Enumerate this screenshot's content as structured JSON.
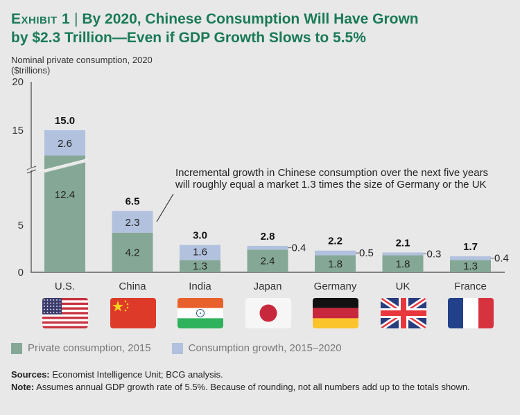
{
  "header": {
    "exhibit_label": "Exhibit 1",
    "separator": "|",
    "title_line1": "By 2020, Chinese Consumption Will Have Grown",
    "title_line2": "by $2.3 Trillion—Even if GDP Growth Slows to 5.5%"
  },
  "subtitle": {
    "line1": "Nominal private consumption, 2020",
    "line2": "($trillions)"
  },
  "colors": {
    "title": "#197a56",
    "base_series": "#85a896",
    "growth_series": "#b1c1de"
  },
  "annotation": {
    "line1": "Incremental growth in Chinese consumption over the next five years",
    "line2": "will roughly equal a market 1.3 times the size of Germany or the UK"
  },
  "chart_data": {
    "type": "bar",
    "stacked": true,
    "title": "By 2020, Chinese Consumption Will Have Grown by $2.3 Trillion—Even if GDP Growth Slows to 5.5%",
    "ylabel": "Nominal private consumption, 2020 ($trillions)",
    "xlabel": "",
    "ylim": [
      0,
      20
    ],
    "yticks": [
      "0",
      "5",
      "15",
      "20"
    ],
    "axis_break": "between 5 and 15 on y-axis and on U.S. bar",
    "grid": false,
    "categories": [
      "U.S.",
      "China",
      "India",
      "Japan",
      "Germany",
      "UK",
      "France"
    ],
    "series": [
      {
        "name": "Private consumption, 2015",
        "values": [
          12.4,
          4.2,
          1.3,
          2.4,
          1.8,
          1.8,
          1.3
        ],
        "labels": [
          "12.4",
          "4.2",
          "1.3",
          "2.4",
          "1.8",
          "1.8",
          "1.3"
        ]
      },
      {
        "name": "Consumption growth, 2015–2020",
        "values": [
          2.6,
          2.3,
          1.6,
          0.4,
          0.5,
          0.3,
          0.4
        ],
        "labels": [
          "2.6",
          "2.3",
          "1.6",
          "0.4",
          "0.5",
          "0.3",
          "0.4"
        ]
      }
    ],
    "totals": [
      "15.0",
      "6.5",
      "3.0",
      "2.8",
      "2.2",
      "2.1",
      "1.7"
    ],
    "legend_position": "bottom-left"
  },
  "flags": [
    {
      "country": "U.S.",
      "icon": "us-flag-icon"
    },
    {
      "country": "China",
      "icon": "china-flag-icon"
    },
    {
      "country": "India",
      "icon": "india-flag-icon"
    },
    {
      "country": "Japan",
      "icon": "japan-flag-icon"
    },
    {
      "country": "Germany",
      "icon": "germany-flag-icon"
    },
    {
      "country": "UK",
      "icon": "uk-flag-icon"
    },
    {
      "country": "France",
      "icon": "france-flag-icon"
    }
  ],
  "legend": {
    "base": "Private consumption, 2015",
    "growth": "Consumption growth, 2015–2020"
  },
  "footer": {
    "sources_label": "Sources:",
    "sources_text": " Economist Intelligence Unit; BCG analysis.",
    "note_label": "Note:",
    "note_text": " Assumes annual GDP growth rate of 5.5%. Because of rounding, not all numbers add up to the totals shown."
  }
}
